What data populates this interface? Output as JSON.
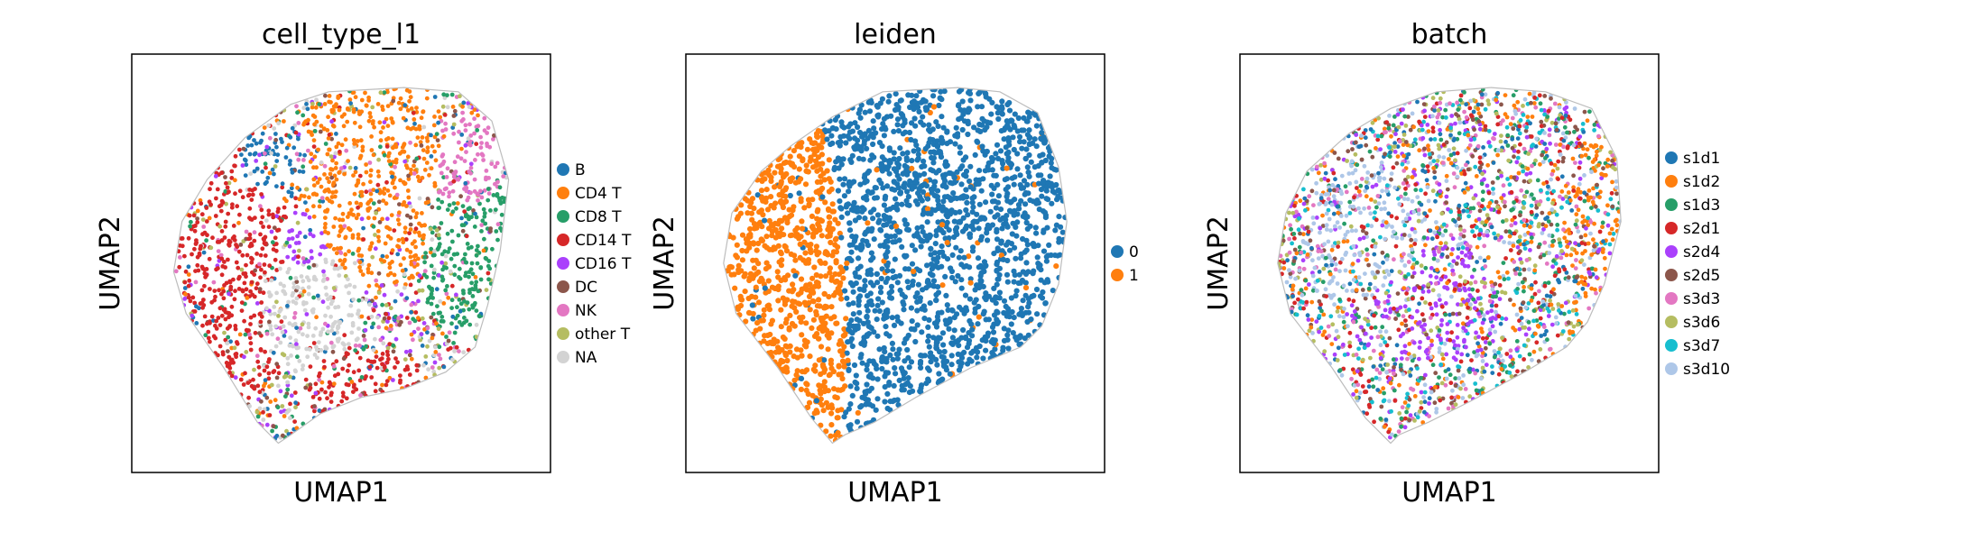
{
  "colors": {
    "blob_outline": "#bdbdbd",
    "frame": "#000000"
  },
  "chart_data": [
    {
      "type": "scatter",
      "title": "cell_type_l1",
      "xlabel": "UMAP1",
      "ylabel": "UMAP2",
      "ticks": "none",
      "grid": false,
      "legend_position": "right",
      "legend": [
        {
          "label": "B",
          "color": "#1f77b4"
        },
        {
          "label": "CD4 T",
          "color": "#ff7f0e"
        },
        {
          "label": "CD8 T",
          "color": "#279e68"
        },
        {
          "label": "CD14 T",
          "color": "#d62728"
        },
        {
          "label": "CD16 T",
          "color": "#aa40fc"
        },
        {
          "label": "DC",
          "color": "#8c564b"
        },
        {
          "label": "NK",
          "color": "#e377c2"
        },
        {
          "label": "other T",
          "color": "#b5bd61"
        },
        {
          "label": "NA",
          "color": "#d3d3d3"
        }
      ],
      "regions": [
        {
          "category": "CD14 T",
          "cx": 0.22,
          "cy": 0.5,
          "rx": 0.18,
          "ry": 0.3
        },
        {
          "category": "CD14 T",
          "cx": 0.55,
          "cy": 0.8,
          "rx": 0.15,
          "ry": 0.08
        },
        {
          "category": "B",
          "cx": 0.33,
          "cy": 0.27,
          "rx": 0.09,
          "ry": 0.08
        },
        {
          "category": "CD16 T",
          "cx": 0.4,
          "cy": 0.45,
          "rx": 0.07,
          "ry": 0.07
        },
        {
          "category": "NA",
          "cx": 0.4,
          "cy": 0.6,
          "rx": 0.14,
          "ry": 0.14
        },
        {
          "category": "CD4 T",
          "cx": 0.58,
          "cy": 0.3,
          "rx": 0.17,
          "ry": 0.24
        },
        {
          "category": "CD8 T",
          "cx": 0.8,
          "cy": 0.45,
          "rx": 0.1,
          "ry": 0.22
        },
        {
          "category": "NK",
          "cx": 0.8,
          "cy": 0.3,
          "rx": 0.08,
          "ry": 0.15
        }
      ]
    },
    {
      "type": "scatter",
      "title": "leiden",
      "xlabel": "UMAP1",
      "ylabel": "UMAP2",
      "ticks": "none",
      "grid": false,
      "legend_position": "right",
      "legend": [
        {
          "label": "0",
          "color": "#1f77b4"
        },
        {
          "label": "1",
          "color": "#ff7f0e"
        }
      ],
      "regions": [
        {
          "category": "0",
          "cx": 0.65,
          "cy": 0.45,
          "rx": 0.3,
          "ry": 0.45
        },
        {
          "category": "1",
          "cx": 0.22,
          "cy": 0.55,
          "rx": 0.17,
          "ry": 0.35
        }
      ]
    },
    {
      "type": "scatter",
      "title": "batch",
      "xlabel": "UMAP1",
      "ylabel": "UMAP2",
      "ticks": "none",
      "grid": false,
      "legend_position": "right",
      "legend": [
        {
          "label": "s1d1",
          "color": "#1f77b4"
        },
        {
          "label": "s1d2",
          "color": "#ff7f0e"
        },
        {
          "label": "s1d3",
          "color": "#279e68"
        },
        {
          "label": "s2d1",
          "color": "#d62728"
        },
        {
          "label": "s2d4",
          "color": "#aa40fc"
        },
        {
          "label": "s2d5",
          "color": "#8c564b"
        },
        {
          "label": "s3d3",
          "color": "#e377c2"
        },
        {
          "label": "s3d6",
          "color": "#b5bd61"
        },
        {
          "label": "s3d7",
          "color": "#17becf"
        },
        {
          "label": "s3d10",
          "color": "#aec7e8"
        }
      ],
      "regions": [
        {
          "category": "s3d10",
          "cx": 0.3,
          "cy": 0.45,
          "rx": 0.15,
          "ry": 0.2
        },
        {
          "category": "s2d4",
          "cx": 0.45,
          "cy": 0.6,
          "rx": 0.2,
          "ry": 0.15
        },
        {
          "category": "s1d2",
          "cx": 0.85,
          "cy": 0.4,
          "rx": 0.08,
          "ry": 0.2
        }
      ]
    }
  ]
}
